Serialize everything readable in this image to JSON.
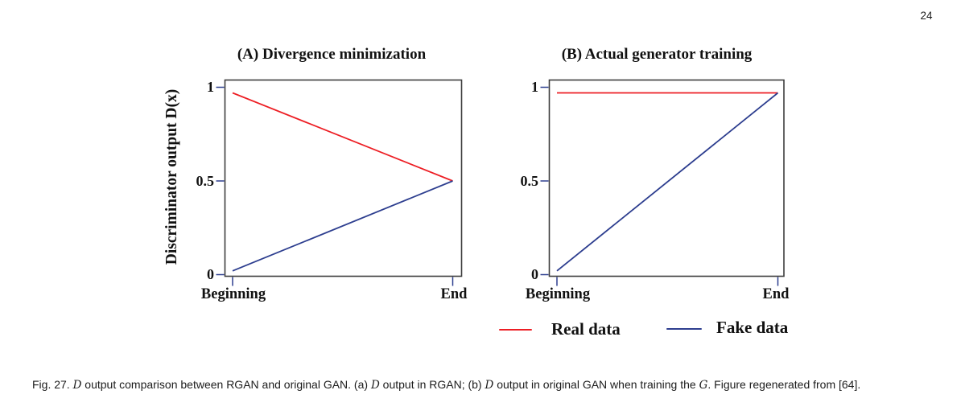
{
  "page": {
    "number": "24"
  },
  "figure": {
    "y_axis_label": "Discriminator output D(x)"
  },
  "chart_data": [
    {
      "type": "line",
      "panel": "A",
      "title": "(A) Divergence minimization",
      "ylabel": "Discriminator output D(x)",
      "xlabel": "",
      "x_categories": [
        "Beginning",
        "End"
      ],
      "x_tick_labels": [
        "Beginning",
        "End"
      ],
      "y_ticks": [
        1,
        0.5,
        0
      ],
      "y_tick_labels": [
        "1",
        "0.5",
        "0"
      ],
      "ylim": [
        0,
        1
      ],
      "grid": false,
      "series": [
        {
          "name": "Real data",
          "color": "#ed1e24",
          "values": [
            0.97,
            0.5
          ]
        },
        {
          "name": "Fake data",
          "color": "#2d3e8f",
          "values": [
            0.02,
            0.5
          ]
        }
      ]
    },
    {
      "type": "line",
      "panel": "B",
      "title": "(B) Actual generator training",
      "ylabel": "",
      "xlabel": "",
      "x_categories": [
        "Beginning",
        "End"
      ],
      "x_tick_labels": [
        "Beginning",
        "End"
      ],
      "y_ticks": [
        1,
        0.5,
        0
      ],
      "y_tick_labels": [
        "1",
        "0.5",
        "0"
      ],
      "ylim": [
        0,
        1
      ],
      "grid": false,
      "series": [
        {
          "name": "Real data",
          "color": "#ed1e24",
          "values": [
            0.97,
            0.97
          ]
        },
        {
          "name": "Fake data",
          "color": "#2d3e8f",
          "values": [
            0.02,
            0.97
          ]
        }
      ]
    }
  ],
  "legend": {
    "position": "bottom-right",
    "items": [
      {
        "label": "Real data",
        "color": "#ed1e24"
      },
      {
        "label": "Fake data",
        "color": "#2d3e8f"
      }
    ]
  },
  "caption": {
    "segments": [
      {
        "text": "Fig. 27. "
      },
      {
        "text": "D",
        "math": true
      },
      {
        "text": " output comparison between RGAN and original GAN. (a) "
      },
      {
        "text": "D",
        "math": true
      },
      {
        "text": " output in RGAN; (b) "
      },
      {
        "text": "D",
        "math": true
      },
      {
        "text": " output in original GAN when training the "
      },
      {
        "text": "G",
        "math": true
      },
      {
        "text": ". Figure regenerated from [64]."
      }
    ]
  },
  "colors": {
    "real_line": "#ed1e24",
    "fake_line": "#2d3e8f",
    "axis_tick": "#2d3e8f",
    "plot_border": "#3d3d3d",
    "text": "#111111"
  }
}
